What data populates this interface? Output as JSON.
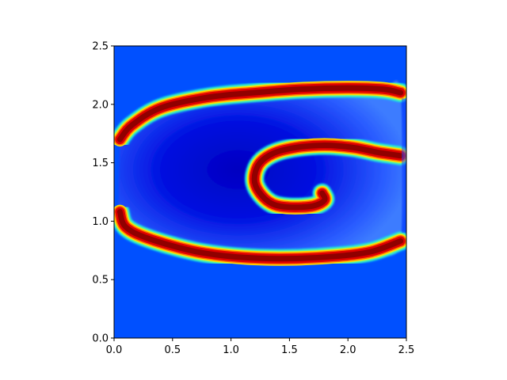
{
  "chart_data": {
    "type": "heatmap",
    "title": "",
    "xlabel": "",
    "ylabel": "",
    "xlim": [
      0,
      2.5
    ],
    "ylim": [
      0,
      2.5
    ],
    "xticks": [
      0.0,
      0.5,
      1.0,
      1.5,
      2.0,
      2.5
    ],
    "yticks": [
      0.0,
      0.5,
      1.0,
      1.5,
      2.0,
      2.5
    ],
    "xtick_labels": [
      "0.0",
      "0.5",
      "1.0",
      "1.5",
      "2.0",
      "2.5"
    ],
    "ytick_labels": [
      "0.0",
      "0.5",
      "1.0",
      "1.5",
      "2.0",
      "2.5"
    ],
    "colormap": "jet",
    "background_color": "#0050ff",
    "field_description": "spiral-shaped red ridge band on blue background",
    "spiral_center": [
      1.78,
      1.24
    ],
    "spiral_arm_curve": [
      [
        1.78,
        1.24
      ],
      [
        1.8,
        1.18
      ],
      [
        1.7,
        1.13
      ],
      [
        1.5,
        1.12
      ],
      [
        1.35,
        1.15
      ],
      [
        1.24,
        1.25
      ],
      [
        1.2,
        1.36
      ],
      [
        1.24,
        1.49
      ],
      [
        1.36,
        1.58
      ],
      [
        1.55,
        1.63
      ],
      [
        1.8,
        1.65
      ],
      [
        2.05,
        1.63
      ],
      [
        2.25,
        1.59
      ],
      [
        2.45,
        1.56
      ]
    ],
    "outer_arm_top": [
      [
        0.05,
        1.7
      ],
      [
        0.15,
        1.82
      ],
      [
        0.4,
        1.97
      ],
      [
        0.8,
        2.06
      ],
      [
        1.2,
        2.1
      ],
      [
        1.6,
        2.13
      ],
      [
        2.0,
        2.14
      ],
      [
        2.3,
        2.13
      ],
      [
        2.45,
        2.1
      ]
    ],
    "outer_arm_bottom": [
      [
        0.05,
        1.08
      ],
      [
        0.1,
        0.95
      ],
      [
        0.3,
        0.85
      ],
      [
        0.7,
        0.74
      ],
      [
        1.1,
        0.69
      ],
      [
        1.5,
        0.68
      ],
      [
        1.9,
        0.7
      ],
      [
        2.2,
        0.74
      ],
      [
        2.45,
        0.83
      ]
    ]
  }
}
